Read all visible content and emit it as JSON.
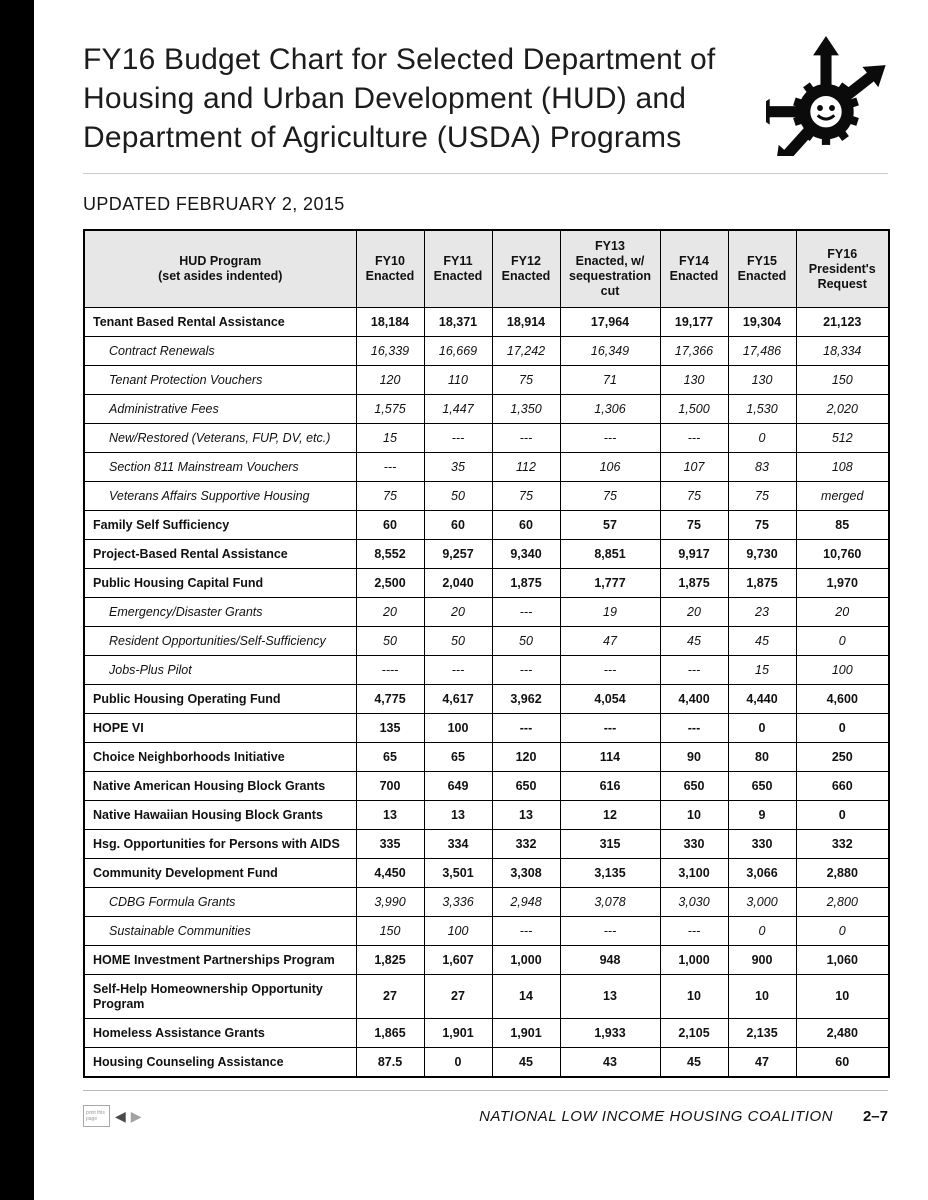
{
  "page": {
    "title": "FY16 Budget Chart for Selected Department of Housing and Urban Development (HUD) and Department of Agriculture (USDA) Programs",
    "updated": "UPDATED FEBRUARY 2, 2015"
  },
  "icons": {
    "top_right": "gear-with-radiating-arrows-icon",
    "back": "◀",
    "forward": "▶"
  },
  "colors": {
    "table_header_bg": "#e7e7e7",
    "edge_bar": "#000000",
    "text": "#111111"
  },
  "table": {
    "headers": [
      "HUD Program\n(set asides indented)",
      "FY10\nEnacted",
      "FY11\nEnacted",
      "FY12\nEnacted",
      "FY13\nEnacted, w/\nsequestration\ncut",
      "FY14\nEnacted",
      "FY15\nEnacted",
      "FY16\nPresident's\nRequest"
    ],
    "rows": [
      {
        "program": "Tenant Based Rental Assistance",
        "indent": false,
        "values": [
          "18,184",
          "18,371",
          "18,914",
          "17,964",
          "19,177",
          "19,304",
          "21,123"
        ]
      },
      {
        "program": "Contract Renewals",
        "indent": true,
        "values": [
          "16,339",
          "16,669",
          "17,242",
          "16,349",
          "17,366",
          "17,486",
          "18,334"
        ]
      },
      {
        "program": "Tenant Protection Vouchers",
        "indent": true,
        "values": [
          "120",
          "110",
          "75",
          "71",
          "130",
          "130",
          "150"
        ]
      },
      {
        "program": "Administrative Fees",
        "indent": true,
        "values": [
          "1,575",
          "1,447",
          "1,350",
          "1,306",
          "1,500",
          "1,530",
          "2,020"
        ]
      },
      {
        "program": "New/Restored (Veterans, FUP, DV, etc.)",
        "indent": true,
        "values": [
          "15",
          "---",
          "---",
          "---",
          "---",
          "0",
          "512"
        ]
      },
      {
        "program": "Section 811 Mainstream Vouchers",
        "indent": true,
        "values": [
          "---",
          "35",
          "112",
          "106",
          "107",
          "83",
          "108"
        ]
      },
      {
        "program": "Veterans Affairs Supportive Housing",
        "indent": true,
        "values": [
          "75",
          "50",
          "75",
          "75",
          "75",
          "75",
          "merged"
        ]
      },
      {
        "program": "Family Self Sufficiency",
        "indent": false,
        "values": [
          "60",
          "60",
          "60",
          "57",
          "75",
          "75",
          "85"
        ]
      },
      {
        "program": "Project-Based Rental Assistance",
        "indent": false,
        "values": [
          "8,552",
          "9,257",
          "9,340",
          "8,851",
          "9,917",
          "9,730",
          "10,760"
        ]
      },
      {
        "program": "Public Housing Capital Fund",
        "indent": false,
        "values": [
          "2,500",
          "2,040",
          "1,875",
          "1,777",
          "1,875",
          "1,875",
          "1,970"
        ]
      },
      {
        "program": "Emergency/Disaster Grants",
        "indent": true,
        "values": [
          "20",
          "20",
          "---",
          "19",
          "20",
          "23",
          "20"
        ]
      },
      {
        "program": "Resident Opportunities/Self-Sufficiency",
        "indent": true,
        "values": [
          "50",
          "50",
          "50",
          "47",
          "45",
          "45",
          "0"
        ]
      },
      {
        "program": "Jobs-Plus Pilot",
        "indent": true,
        "values": [
          "----",
          "---",
          "---",
          "---",
          "---",
          "15",
          "100"
        ]
      },
      {
        "program": "Public Housing Operating Fund",
        "indent": false,
        "values": [
          "4,775",
          "4,617",
          "3,962",
          "4,054",
          "4,400",
          "4,440",
          "4,600"
        ]
      },
      {
        "program": "HOPE VI",
        "indent": false,
        "values": [
          "135",
          "100",
          "---",
          "---",
          "---",
          "0",
          "0"
        ]
      },
      {
        "program": "Choice Neighborhoods Initiative",
        "indent": false,
        "values": [
          "65",
          "65",
          "120",
          "114",
          "90",
          "80",
          "250"
        ]
      },
      {
        "program": "Native American Housing Block Grants",
        "indent": false,
        "values": [
          "700",
          "649",
          "650",
          "616",
          "650",
          "650",
          "660"
        ]
      },
      {
        "program": "Native Hawaiian Housing Block Grants",
        "indent": false,
        "values": [
          "13",
          "13",
          "13",
          "12",
          "10",
          "9",
          "0"
        ]
      },
      {
        "program": "Hsg. Opportunities for Persons with AIDS",
        "indent": false,
        "values": [
          "335",
          "334",
          "332",
          "315",
          "330",
          "330",
          "332"
        ]
      },
      {
        "program": "Community Development Fund",
        "indent": false,
        "values": [
          "4,450",
          "3,501",
          "3,308",
          "3,135",
          "3,100",
          "3,066",
          "2,880"
        ]
      },
      {
        "program": "CDBG Formula Grants",
        "indent": true,
        "values": [
          "3,990",
          "3,336",
          "2,948",
          "3,078",
          "3,030",
          "3,000",
          "2,800"
        ]
      },
      {
        "program": "Sustainable Communities",
        "indent": true,
        "values": [
          "150",
          "100",
          "---",
          "---",
          "---",
          "0",
          "0"
        ]
      },
      {
        "program": "HOME Investment Partnerships Program",
        "indent": false,
        "values": [
          "1,825",
          "1,607",
          "1,000",
          "948",
          "1,000",
          "900",
          "1,060"
        ]
      },
      {
        "program": "Self-Help Homeownership Opportunity Program",
        "indent": false,
        "values": [
          "27",
          "27",
          "14",
          "13",
          "10",
          "10",
          "10"
        ]
      },
      {
        "program": "Homeless Assistance Grants",
        "indent": false,
        "values": [
          "1,865",
          "1,901",
          "1,901",
          "1,933",
          "2,105",
          "2,135",
          "2,480"
        ]
      },
      {
        "program": "Housing Counseling Assistance",
        "indent": false,
        "values": [
          "87.5",
          "0",
          "45",
          "43",
          "45",
          "47",
          "60"
        ]
      }
    ]
  },
  "footer": {
    "print_label": "print this page",
    "org": "NATIONAL LOW INCOME HOUSING COALITION",
    "page": "2–7"
  }
}
